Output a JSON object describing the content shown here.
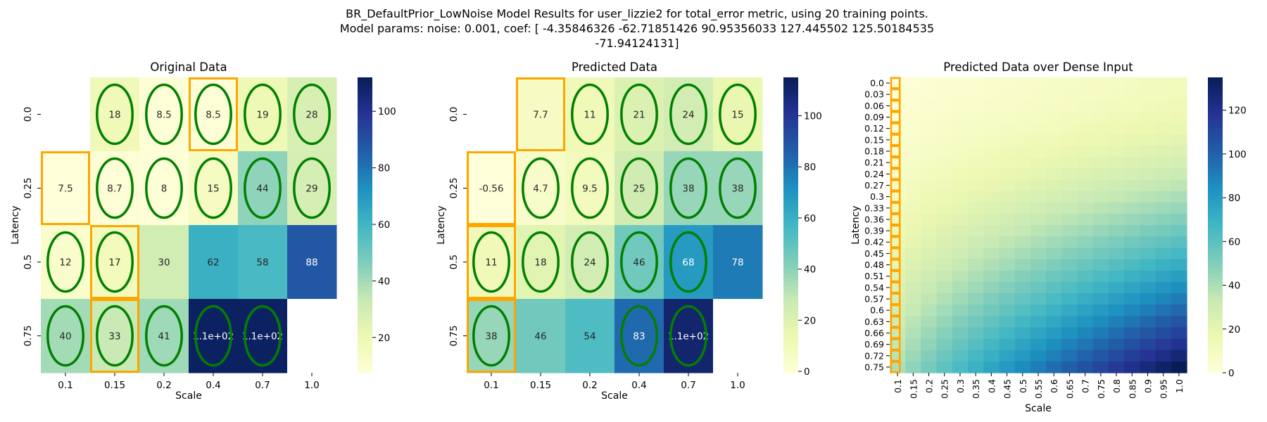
{
  "figure": {
    "suptitle_lines": [
      "BR_DefaultPrior_LowNoise Model Results for user_lizzie2 for total_error metric, using 20 training points.",
      "Model params: noise: 0.001, coef: [ -4.35846326 -62.71851426  90.95356033 127.445502   125.50184535",
      "-71.94124131]"
    ]
  },
  "colors": {
    "cmap": [
      "#ffffd9",
      "#edf8b1",
      "#c7e9b4",
      "#7fcdbb",
      "#41b6c4",
      "#1d91c0",
      "#225ea8",
      "#253494",
      "#081d58"
    ],
    "train_marker": "#008000",
    "highlight_marker": "#ffa500",
    "missing_cell": "#ffffff"
  },
  "chart_data": [
    {
      "type": "heatmap",
      "title": "Original Data",
      "xlabel": "Scale",
      "ylabel": "Latency",
      "x_ticks": [
        "0.1",
        "0.15",
        "0.2",
        "0.4",
        "0.7",
        "1.0"
      ],
      "y_ticks": [
        "0.0",
        "0.25",
        "0.5",
        "0.75"
      ],
      "values": [
        [
          null,
          18,
          8.5,
          8.5,
          19,
          28
        ],
        [
          7.5,
          8.7,
          8,
          15,
          44,
          29
        ],
        [
          12,
          17,
          30,
          62,
          58,
          88
        ],
        [
          40,
          33,
          41,
          110,
          110,
          null
        ]
      ],
      "labels": [
        [
          "",
          "18",
          "8.5",
          "8.5",
          "19",
          "28"
        ],
        [
          "7.5",
          "8.7",
          "8",
          "15",
          "44",
          "29"
        ],
        [
          "12",
          "17",
          "30",
          "62",
          "58",
          "88"
        ],
        [
          "40",
          "33",
          "41",
          "1.1e+02",
          "1.1e+02",
          ""
        ]
      ],
      "training_cells": [
        [
          0,
          1
        ],
        [
          0,
          2
        ],
        [
          0,
          3
        ],
        [
          0,
          4
        ],
        [
          0,
          5
        ],
        [
          1,
          1
        ],
        [
          1,
          2
        ],
        [
          1,
          3
        ],
        [
          1,
          4
        ],
        [
          1,
          5
        ],
        [
          2,
          0
        ],
        [
          2,
          1
        ],
        [
          3,
          0
        ],
        [
          3,
          1
        ],
        [
          3,
          2
        ],
        [
          3,
          3
        ],
        [
          3,
          4
        ]
      ],
      "highlighted_cells": [
        [
          0,
          3
        ],
        [
          1,
          0
        ],
        [
          2,
          1
        ],
        [
          3,
          1
        ]
      ],
      "colorbar": {
        "min": 7.5,
        "max": 112,
        "ticks": [
          "20",
          "40",
          "60",
          "80",
          "100"
        ],
        "tick_values": [
          20,
          40,
          60,
          80,
          100
        ]
      }
    },
    {
      "type": "heatmap",
      "title": "Predicted Data",
      "xlabel": "Scale",
      "ylabel": "Latency",
      "x_ticks": [
        "0.1",
        "0.15",
        "0.2",
        "0.4",
        "0.7",
        "1.0"
      ],
      "y_ticks": [
        "0.0",
        "0.25",
        "0.5",
        "0.75"
      ],
      "values": [
        [
          null,
          7.7,
          11,
          21,
          24,
          15
        ],
        [
          -0.56,
          4.7,
          9.5,
          25,
          38,
          38
        ],
        [
          11,
          18,
          24,
          46,
          68,
          78
        ],
        [
          38,
          46,
          54,
          83,
          110,
          null
        ]
      ],
      "labels": [
        [
          "",
          "7.7",
          "11",
          "21",
          "24",
          "15"
        ],
        [
          "-0.56",
          "4.7",
          "9.5",
          "25",
          "38",
          "38"
        ],
        [
          "11",
          "18",
          "24",
          "46",
          "68",
          "78"
        ],
        [
          "38",
          "46",
          "54",
          "83",
          "1.1e+02",
          ""
        ]
      ],
      "training_cells": [
        [
          0,
          2
        ],
        [
          0,
          3
        ],
        [
          0,
          4
        ],
        [
          0,
          5
        ],
        [
          1,
          1
        ],
        [
          1,
          2
        ],
        [
          1,
          3
        ],
        [
          1,
          4
        ],
        [
          1,
          5
        ],
        [
          2,
          0
        ],
        [
          2,
          1
        ],
        [
          2,
          2
        ],
        [
          2,
          3
        ],
        [
          2,
          4
        ],
        [
          3,
          0
        ],
        [
          3,
          3
        ],
        [
          3,
          4
        ]
      ],
      "highlighted_cells": [
        [
          0,
          1
        ],
        [
          1,
          0
        ],
        [
          2,
          0
        ],
        [
          3,
          0
        ]
      ],
      "colorbar": {
        "min": -0.56,
        "max": 115,
        "ticks": [
          "0",
          "20",
          "40",
          "60",
          "80",
          "100"
        ],
        "tick_values": [
          0,
          20,
          40,
          60,
          80,
          100
        ]
      }
    },
    {
      "type": "heatmap",
      "title": "Predicted Data over Dense Input",
      "xlabel": "Scale",
      "ylabel": "Latency",
      "x_ticks": [
        "0.1",
        "0.15",
        "0.2",
        "0.25",
        "0.3",
        "0.35",
        "0.4",
        "0.45",
        "0.5",
        "0.55",
        "0.6",
        "0.65",
        "0.7",
        "0.75",
        "0.8",
        "0.85",
        "0.9",
        "0.95",
        "1.0"
      ],
      "y_ticks": [
        "0.0",
        "0.03",
        "0.06",
        "0.09",
        "0.12",
        "0.15",
        "0.18",
        "0.21",
        "0.24",
        "0.27",
        "0.3",
        "0.33",
        "0.36",
        "0.39",
        "0.42",
        "0.45",
        "0.48",
        "0.51",
        "0.54",
        "0.57",
        "0.6",
        "0.63",
        "0.66",
        "0.69",
        "0.72",
        "0.75"
      ],
      "corner_values": {
        "top_left": 2,
        "top_right": 12,
        "bottom_left": 40,
        "bottom_right": 135
      },
      "highlighted_column": "0.1",
      "colorbar": {
        "min": 0,
        "max": 135,
        "ticks": [
          "0",
          "20",
          "40",
          "60",
          "80",
          "100",
          "120"
        ],
        "tick_values": [
          0,
          20,
          40,
          60,
          80,
          100,
          120
        ]
      }
    }
  ]
}
